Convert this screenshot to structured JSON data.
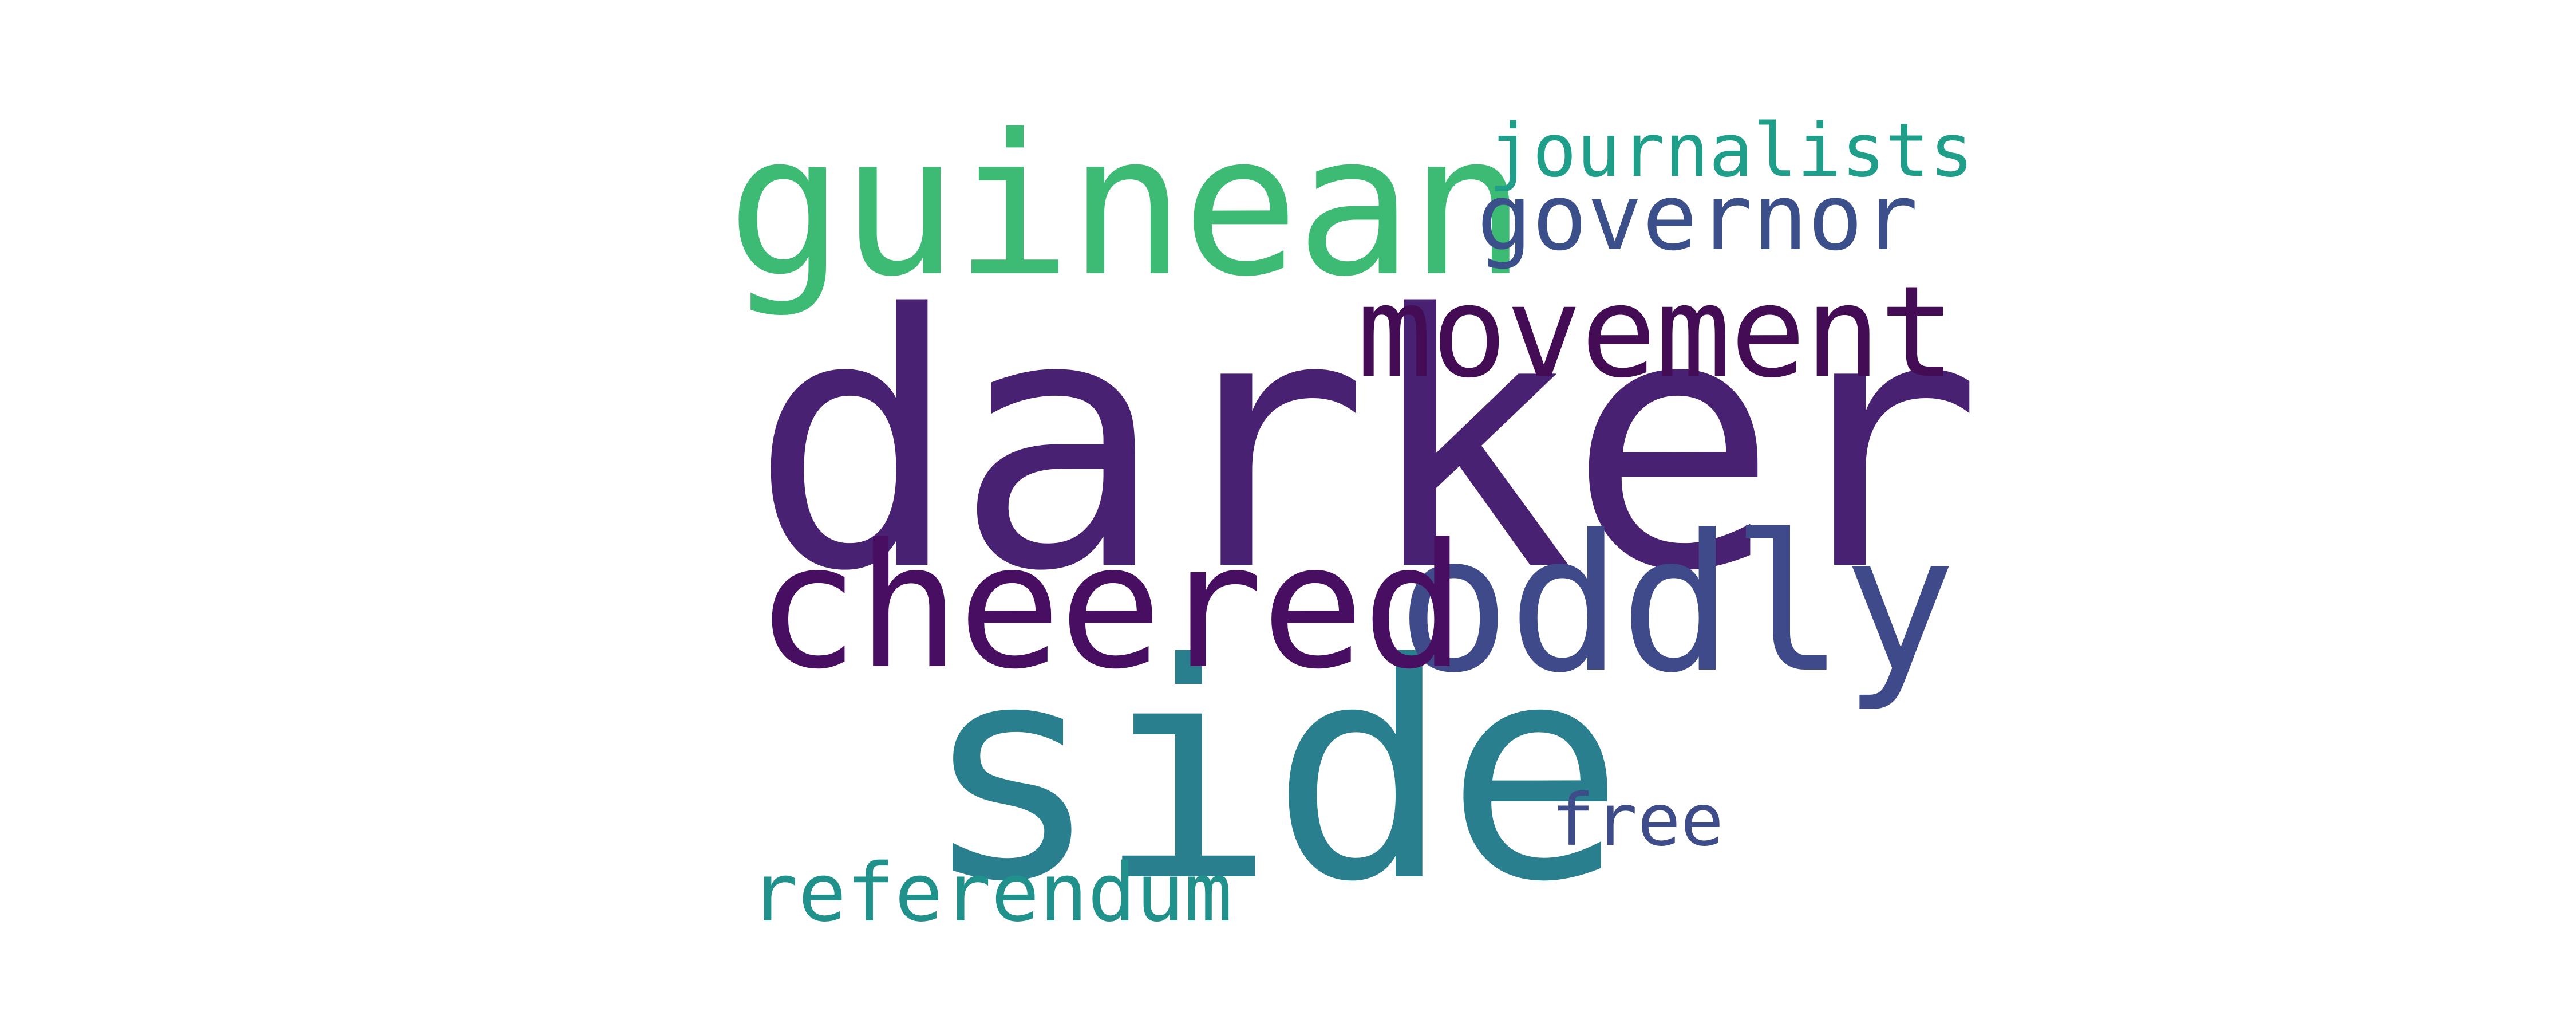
{
  "words": [
    {
      "id": "darker",
      "text": "darker",
      "color": "#482173"
    },
    {
      "id": "side",
      "text": "side",
      "color": "#2a7f8e"
    },
    {
      "id": "guinean",
      "text": "guinean",
      "color": "#3dbb74"
    },
    {
      "id": "oddly",
      "text": "oddly",
      "color": "#3f4a8a"
    },
    {
      "id": "cheered",
      "text": "cheered",
      "color": "#470e61"
    },
    {
      "id": "movement",
      "text": "movement",
      "color": "#440c54"
    },
    {
      "id": "governor",
      "text": "governor",
      "color": "#3b4f8a"
    },
    {
      "id": "journalists",
      "text": "journalists",
      "color": "#1f9e89"
    },
    {
      "id": "referendum",
      "text": "referendum",
      "color": "#21918c"
    },
    {
      "id": "free",
      "text": "free",
      "color": "#3e4c8a"
    }
  ]
}
